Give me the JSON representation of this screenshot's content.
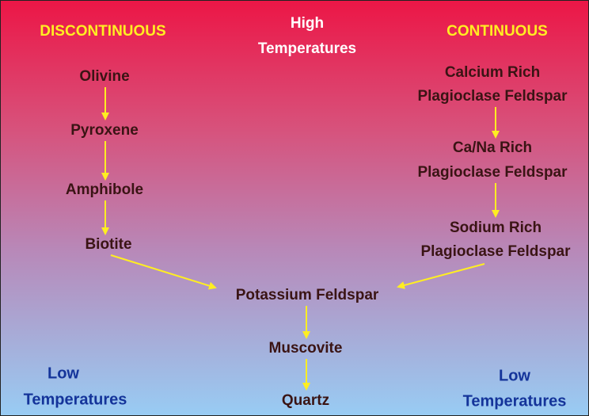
{
  "header": {
    "left": "DISCONTINUOUS",
    "center": [
      "High",
      "Temperatures"
    ],
    "right": "CONTINUOUS"
  },
  "discontinuous": [
    "Olivine",
    "Pyroxene",
    "Amphibole",
    "Biotite"
  ],
  "continuous": [
    [
      "Calcium Rich",
      "Plagioclase Feldspar"
    ],
    [
      "Ca/Na Rich",
      "Plagioclase Feldspar"
    ],
    [
      "Sodium Rich",
      "Plagioclase Feldspar"
    ]
  ],
  "merged": [
    "Potassium Feldspar",
    "Muscovite",
    "Quartz"
  ],
  "footer": {
    "left": [
      "Low",
      "Temperatures"
    ],
    "right": [
      "Low",
      "Temperatures"
    ]
  }
}
